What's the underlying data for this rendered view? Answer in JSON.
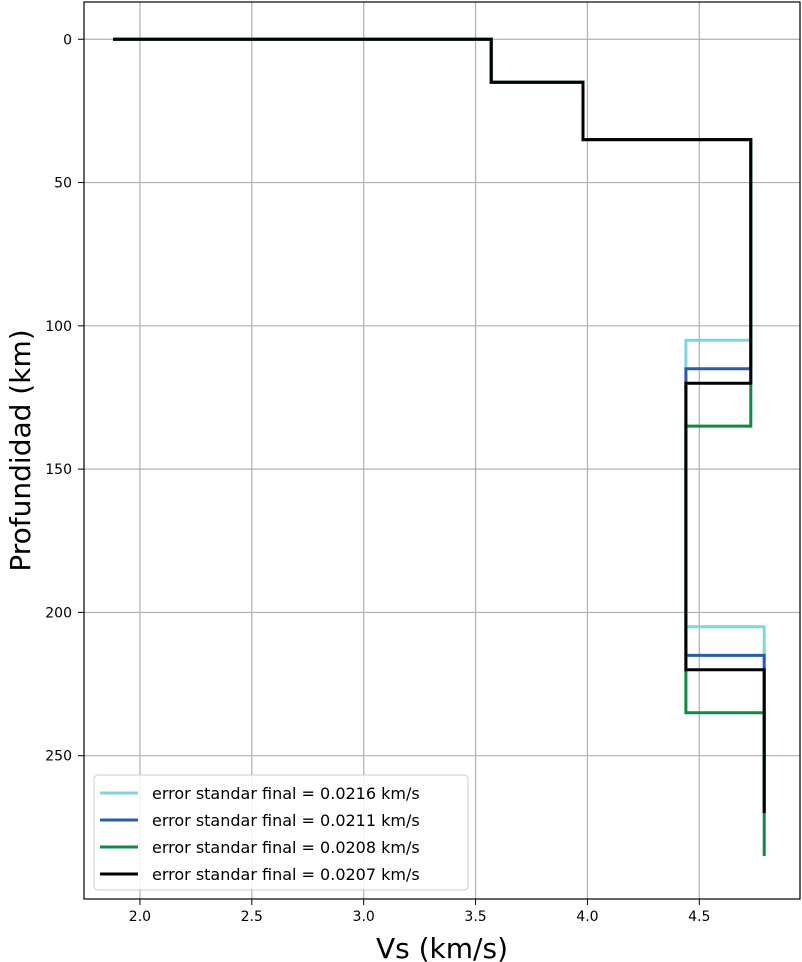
{
  "chart_data": {
    "type": "line",
    "subtype": "step-profile",
    "title": "",
    "xlabel": "Vs (km/s)",
    "ylabel": "Profundidad (km)",
    "xlim": [
      1.75,
      4.95
    ],
    "ylim": [
      300,
      -13
    ],
    "y_inverted": true,
    "xticks": [
      "2.0",
      "2.5",
      "3.0",
      "3.5",
      "4.0",
      "4.5"
    ],
    "xtick_values": [
      2.0,
      2.5,
      3.0,
      3.5,
      4.0,
      4.5
    ],
    "yticks": [
      "0",
      "50",
      "100",
      "150",
      "200",
      "250"
    ],
    "ytick_values": [
      0,
      50,
      100,
      150,
      200,
      250
    ],
    "grid": true,
    "legend_position": "lower-left",
    "series": [
      {
        "name": "error standar final = 0.0216 km/s",
        "color": "#80d4dc",
        "x": [
          1.88,
          3.57,
          3.57,
          3.98,
          3.98,
          4.73,
          4.73,
          4.44,
          4.44,
          4.79,
          4.79
        ],
        "y": [
          0,
          0,
          15,
          15,
          35,
          35,
          105,
          105,
          205,
          205,
          270
        ]
      },
      {
        "name": "error standar final = 0.0211 km/s",
        "color": "#2a5caa",
        "x": [
          1.88,
          3.57,
          3.57,
          3.98,
          3.98,
          4.73,
          4.73,
          4.44,
          4.44,
          4.79,
          4.79
        ],
        "y": [
          0,
          0,
          15,
          15,
          35,
          35,
          115,
          115,
          215,
          215,
          270
        ]
      },
      {
        "name": "error standar final = 0.0208 km/s",
        "color": "#0e8a45",
        "x": [
          1.88,
          3.57,
          3.57,
          3.98,
          3.98,
          4.73,
          4.73,
          4.44,
          4.44,
          4.79,
          4.79
        ],
        "y": [
          0,
          0,
          15,
          15,
          35,
          35,
          135,
          135,
          235,
          235,
          285
        ]
      },
      {
        "name": "error standar final = 0.0207 km/s",
        "color": "#000000",
        "x": [
          1.88,
          3.57,
          3.57,
          3.98,
          3.98,
          4.73,
          4.73,
          4.44,
          4.44,
          4.79,
          4.79
        ],
        "y": [
          0,
          0,
          15,
          15,
          35,
          35,
          120,
          120,
          220,
          220,
          270
        ]
      }
    ]
  }
}
